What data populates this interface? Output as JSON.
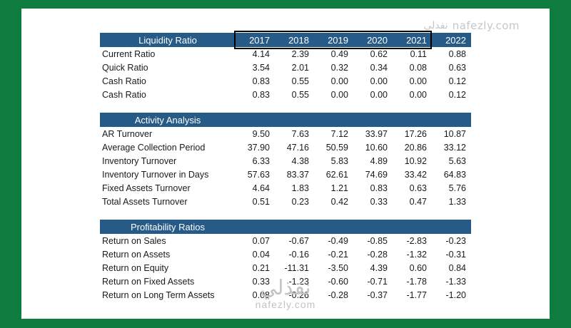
{
  "watermarks": {
    "top_logo": "نفذلي",
    "top_text": "nafezly.com",
    "bottom_arabic": "نفذلي",
    "bottom_domain": "nafezly.com"
  },
  "colors": {
    "frame_green": "#0d7c3e",
    "header_blue": "#265a87",
    "highlight_border": "#000000"
  },
  "table": {
    "years": [
      "2017",
      "2018",
      "2019",
      "2020",
      "2021",
      "2022"
    ],
    "sections": [
      {
        "title": "Liquidity Ratio",
        "rows": [
          {
            "label": "Current Ratio",
            "values": [
              "4.14",
              "2.39",
              "0.49",
              "0.62",
              "0.11",
              "0.88"
            ]
          },
          {
            "label": "Quick Ratio",
            "values": [
              "3.54",
              "2.01",
              "0.32",
              "0.34",
              "0.08",
              "0.63"
            ]
          },
          {
            "label": "Cash Ratio",
            "values": [
              "0.83",
              "0.55",
              "0.00",
              "0.00",
              "0.00",
              "0.12"
            ]
          },
          {
            "label": "Cash Ratio",
            "values": [
              "0.83",
              "0.55",
              "0.00",
              "0.00",
              "0.00",
              "0.12"
            ]
          }
        ]
      },
      {
        "title": "Activity Analysis",
        "rows": [
          {
            "label": "AR Turnover",
            "values": [
              "9.50",
              "7.63",
              "7.12",
              "33.97",
              "17.26",
              "10.87"
            ]
          },
          {
            "label": "Average Collection Period",
            "values": [
              "37.90",
              "47.16",
              "50.59",
              "10.60",
              "20.86",
              "33.12"
            ]
          },
          {
            "label": "Inventory Turnover",
            "values": [
              "6.33",
              "4.38",
              "5.83",
              "4.89",
              "10.92",
              "5.63"
            ]
          },
          {
            "label": "Inventory Turnover in Days",
            "values": [
              "57.63",
              "83.37",
              "62.61",
              "74.69",
              "33.42",
              "64.83"
            ]
          },
          {
            "label": "Fixed Assets Turnover",
            "values": [
              "4.64",
              "1.83",
              "1.21",
              "0.83",
              "0.63",
              "5.76"
            ]
          },
          {
            "label": "Total Assets Turnover",
            "values": [
              "0.51",
              "0.23",
              "0.42",
              "0.33",
              "0.47",
              "1.33"
            ]
          }
        ]
      },
      {
        "title": "Profitability Ratios",
        "rows": [
          {
            "label": "Return on Sales",
            "values": [
              "0.07",
              "-0.67",
              "-0.49",
              "-0.85",
              "-2.83",
              "-0.23"
            ]
          },
          {
            "label": "Return on Assets",
            "values": [
              "0.04",
              "-0.16",
              "-0.21",
              "-0.28",
              "-1.32",
              "-0.31"
            ]
          },
          {
            "label": "Return on Equity",
            "values": [
              "0.21",
              "-11.31",
              "-3.50",
              "4.39",
              "0.60",
              "0.84"
            ]
          },
          {
            "label": "Return on Fixed Assets",
            "values": [
              "0.33",
              "-1.23",
              "-0.60",
              "-0.71",
              "-1.78",
              "-1.33"
            ]
          },
          {
            "label": "Return on Long Term Assets",
            "values": [
              "0.08",
              "-0.26",
              "-0.28",
              "-0.37",
              "-1.77",
              "-1.20"
            ]
          }
        ]
      }
    ]
  }
}
